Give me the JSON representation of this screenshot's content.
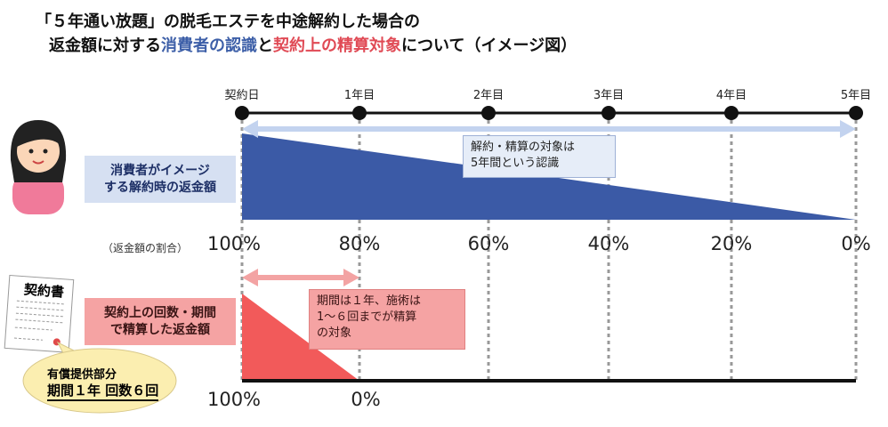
{
  "title": {
    "line1": "「５年通い放題」の脱毛エステを中途解約した場合の",
    "line2_a": "返金額に対する",
    "line2_b": "消費者の認識",
    "line2_c": "と",
    "line2_d": "契約上の精算対象",
    "line2_e": "について（イメージ図）"
  },
  "timeline": {
    "labels": [
      "契約日",
      "1年目",
      "2年目",
      "3年目",
      "4年目",
      "5年目"
    ]
  },
  "consumer": {
    "label": "消費者がイメージ\nする解約時の返金額",
    "callout": "解約・精算の対象は\n5年間という認識",
    "ratio_caption": "（返金額の割合）",
    "percents": [
      "100%",
      "80%",
      "60%",
      "40%",
      "20%",
      "0%"
    ]
  },
  "contract": {
    "doc_title": "契約書",
    "label": "契約上の回数・期間\nで精算した返金額",
    "callout": "期間は１年、施術は\n1～６回までが精算\nの対象",
    "bubble_line1": "有償提供部分",
    "bubble_line2": "期間１年 回数６回",
    "percents": [
      "100%",
      "0%"
    ]
  },
  "colors": {
    "blue": "#3b5aa6",
    "red": "#f25a5a",
    "blue_box": "#d6e0f2",
    "red_box": "#f5a3a3",
    "bubble": "#fbeeb0"
  }
}
